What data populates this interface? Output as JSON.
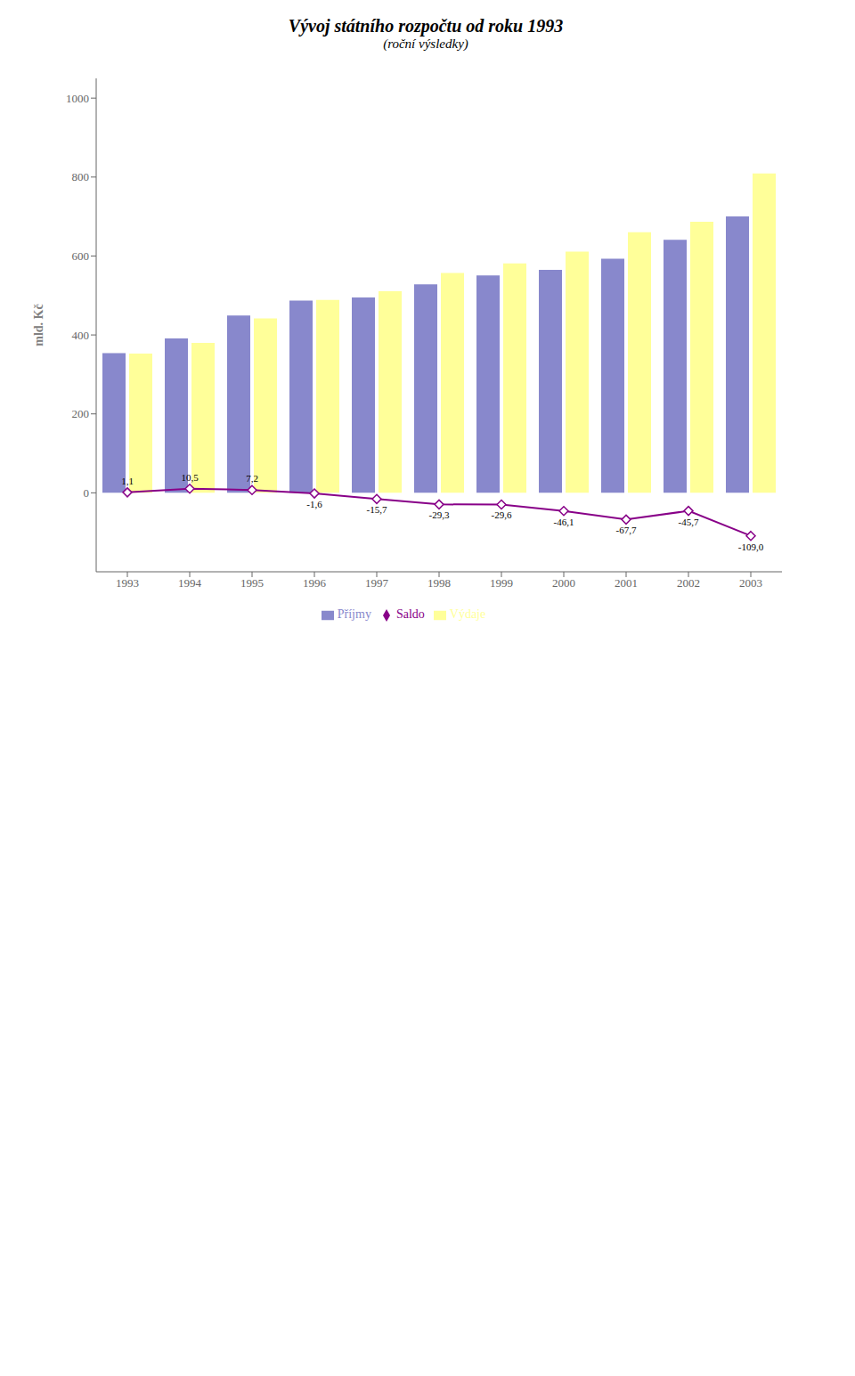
{
  "chart_data": {
    "type": "bar",
    "title": "Vývoj státního rozpočtu od roku 1993",
    "subtitle": "(roční výsledky)",
    "ylabel": "mld. Kč",
    "categories": [
      "1993",
      "1994",
      "1995",
      "1996",
      "1997",
      "1998",
      "1999",
      "2000",
      "2001",
      "2002",
      "2003"
    ],
    "series": [
      {
        "name": "Příjmy",
        "type": "bar",
        "color": "#8888cc",
        "values": [
          354,
          391,
          449,
          487,
          495,
          528,
          551,
          565,
          593,
          641,
          700
        ]
      },
      {
        "name": "Výdaje",
        "type": "bar",
        "color": "#ffff99",
        "values": [
          353,
          380,
          442,
          489,
          511,
          557,
          581,
          611,
          660,
          687,
          809
        ]
      },
      {
        "name": "Saldo",
        "type": "line",
        "color": "#880088",
        "marker": "diamond",
        "line_style": "solid",
        "data_labels": true,
        "values": [
          1.1,
          10.5,
          7.2,
          -1.6,
          -15.7,
          -29.3,
          -29.6,
          -46.1,
          -67.7,
          -45.7,
          -109.0
        ],
        "value_labels": [
          "1,1",
          "10,5",
          "7,2",
          "-1,6",
          "-15,7",
          "-29,3",
          "-29,6",
          "-46,1",
          "-67,7",
          "-45,7",
          "-109,0"
        ]
      }
    ],
    "ylim": [
      -200,
      1050
    ],
    "yticks": [
      0,
      200,
      400,
      600,
      800,
      1000
    ],
    "grid": false,
    "legend": "bottom"
  }
}
